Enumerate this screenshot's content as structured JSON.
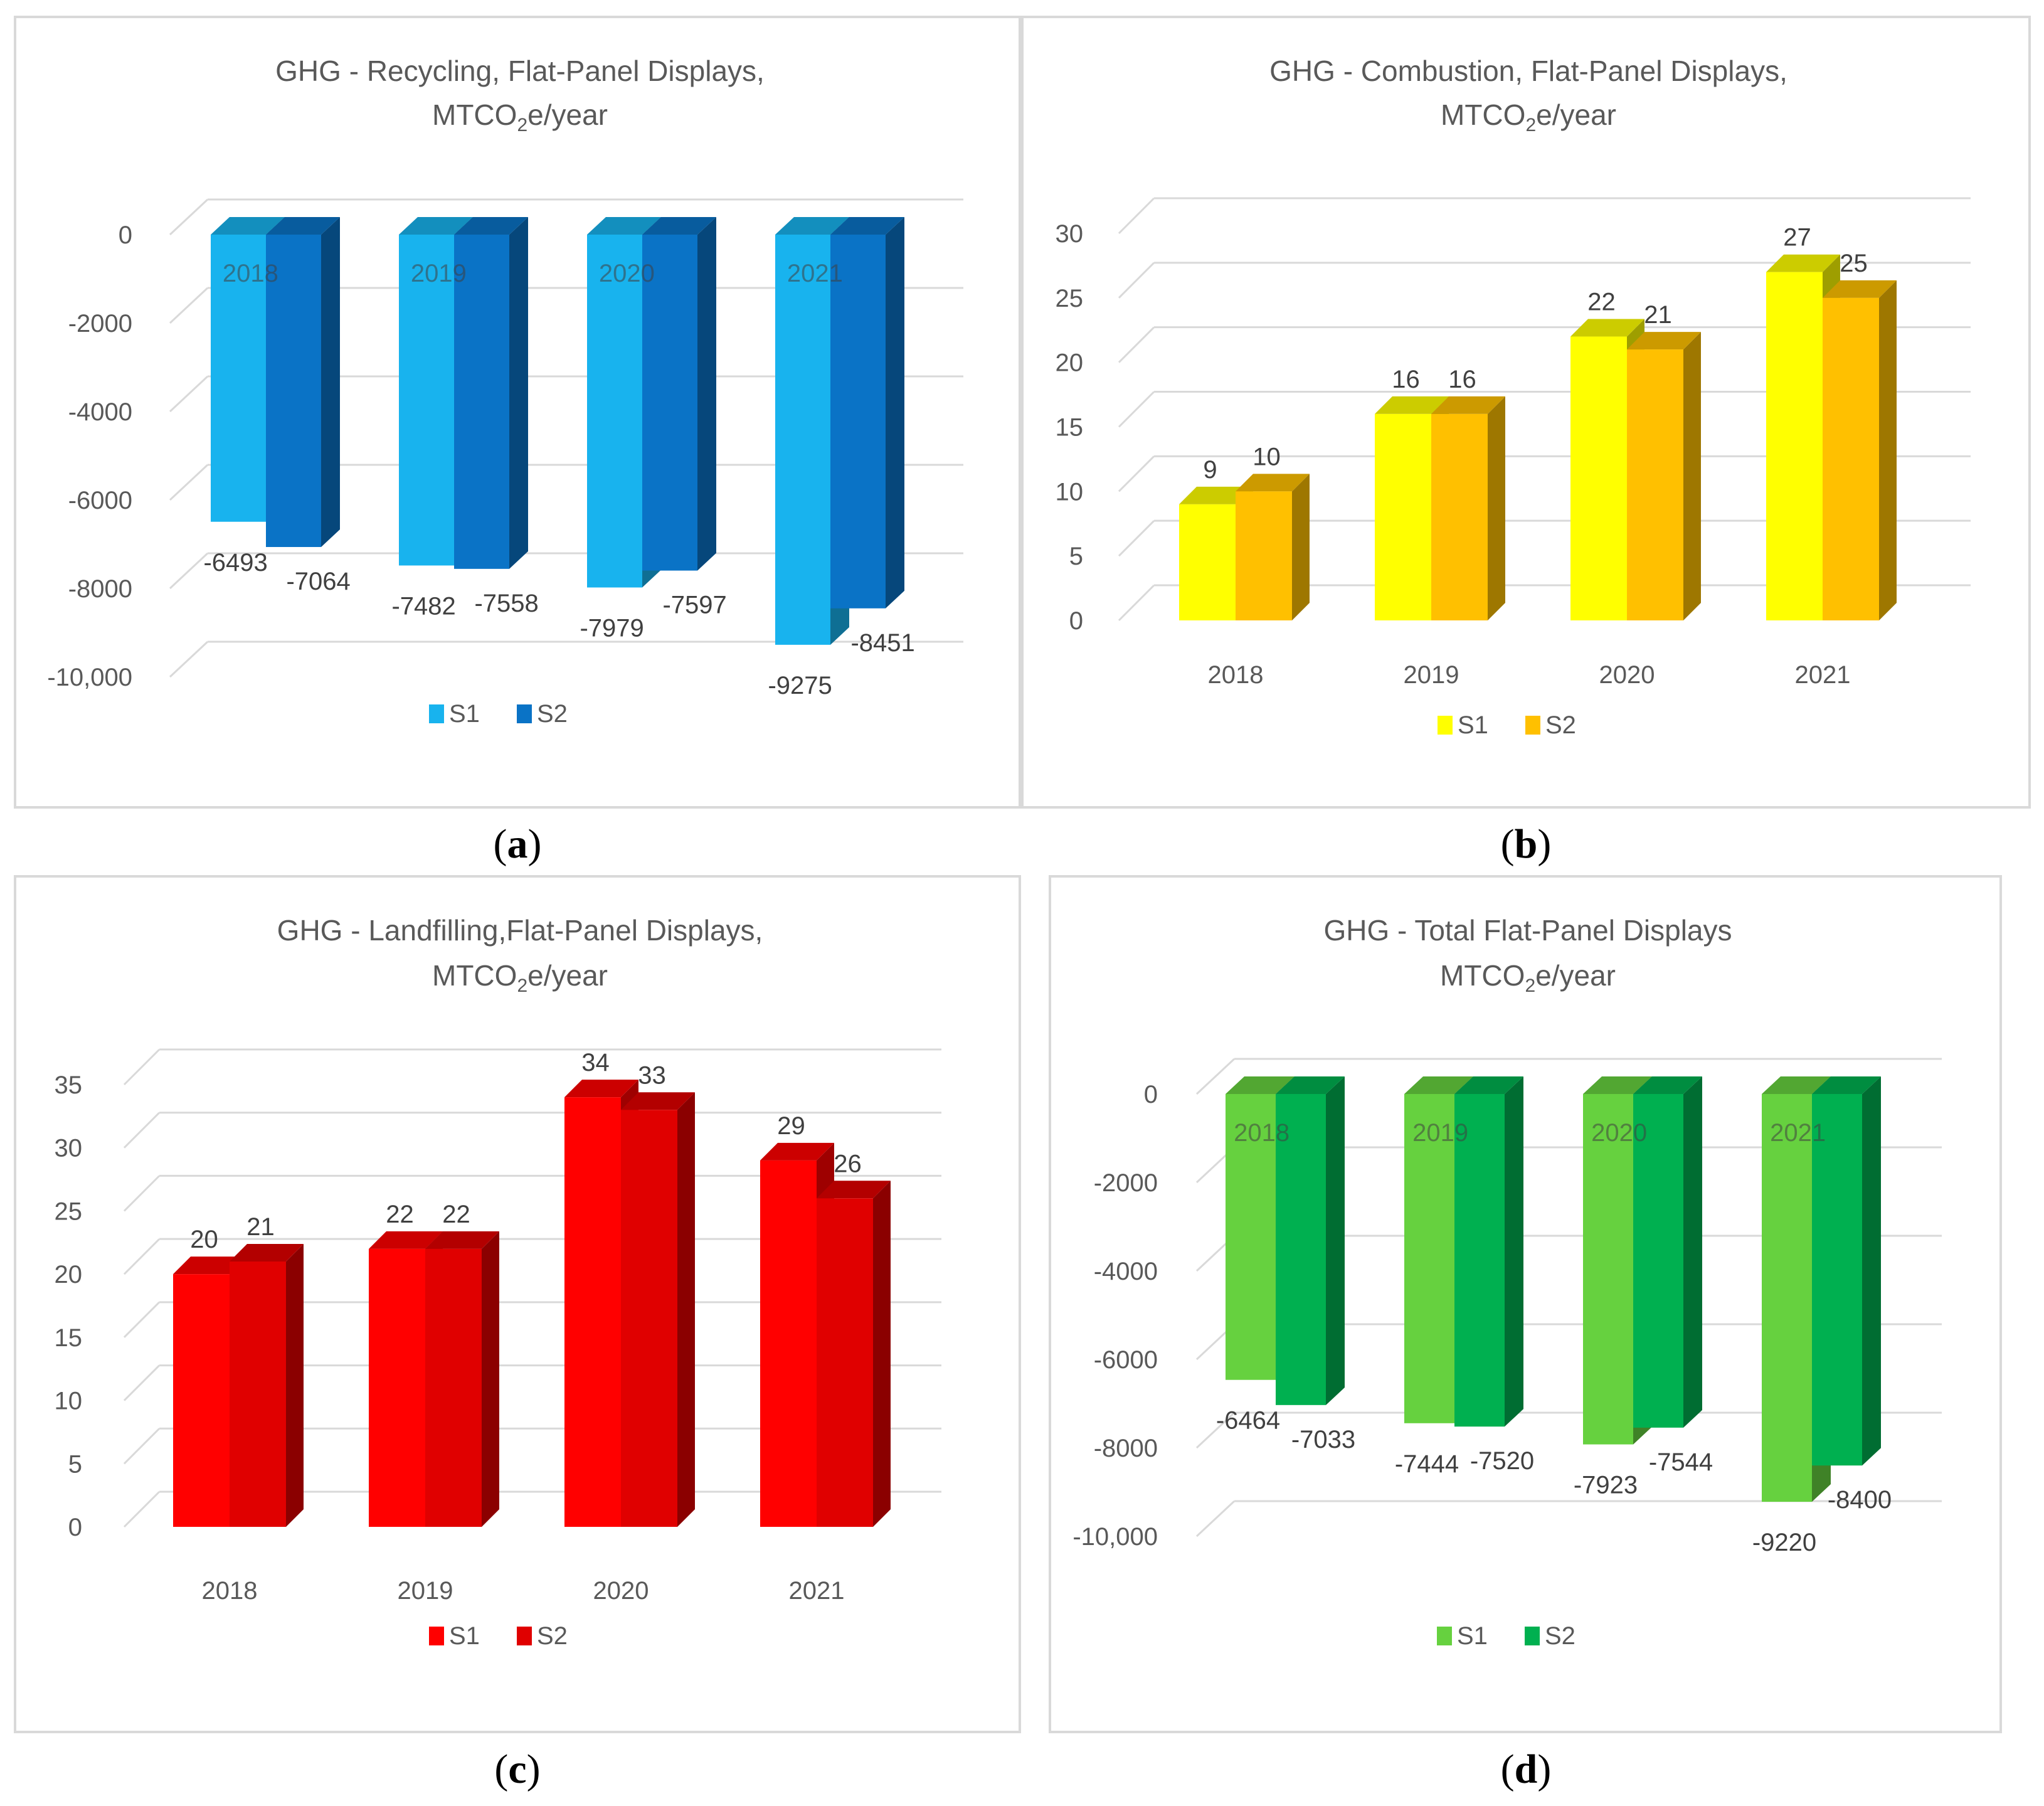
{
  "chart_data": [
    {
      "id": "a",
      "type": "bar",
      "title": "GHG  - Recycling, Flat-Panel Displays,",
      "subtitle": "MTCO2e/year",
      "categories": [
        "2018",
        "2019",
        "2020",
        "2021"
      ],
      "series": [
        {
          "name": "S1",
          "values": [
            -6493,
            -7482,
            -7979,
            -9275
          ],
          "color": "#18b3ee"
        },
        {
          "name": "S2",
          "values": [
            -7064,
            -7558,
            -7597,
            -8451
          ],
          "color": "#0a73c6"
        }
      ],
      "data_labels": [
        [
          "-6493",
          "-7482",
          "-7979",
          "-9275"
        ],
        [
          "-7064",
          "-7558",
          "-7597",
          "-8451"
        ]
      ],
      "yticks": [
        0,
        -2000,
        -4000,
        -6000,
        -8000,
        -10000
      ],
      "ytick_labels": [
        "0",
        "-2000",
        "-4000",
        "-6000",
        "-8000",
        "-10,000"
      ],
      "ylim": [
        -10000,
        0
      ],
      "xlabel": "",
      "ylabel": "",
      "category_labels_inside_bars": true,
      "legend": "bottom",
      "caption": "a"
    },
    {
      "id": "b",
      "type": "bar",
      "title": "GHG  - Combustion, Flat-Panel Displays,",
      "subtitle": "MTCO2e/year",
      "categories": [
        "2018",
        "2019",
        "2020",
        "2021"
      ],
      "series": [
        {
          "name": "S1",
          "values": [
            9,
            16,
            22,
            27
          ],
          "color": "#ffff00"
        },
        {
          "name": "S2",
          "values": [
            10,
            16,
            21,
            25
          ],
          "color": "#ffc000"
        }
      ],
      "data_labels": [
        [
          "9",
          "16",
          "22",
          "27"
        ],
        [
          "10",
          "16",
          "21",
          "25"
        ]
      ],
      "yticks": [
        0,
        5,
        10,
        15,
        20,
        25,
        30
      ],
      "ytick_labels": [
        "0",
        "5",
        "10",
        "15",
        "20",
        "25",
        "30"
      ],
      "ylim": [
        0,
        30
      ],
      "xlabel": "",
      "ylabel": "",
      "category_labels_inside_bars": false,
      "legend": "bottom",
      "caption": "b"
    },
    {
      "id": "c",
      "type": "bar",
      "title": "GHG  - Landfilling,Flat-Panel Displays,",
      "subtitle": "MTCO2e/year",
      "categories": [
        "2018",
        "2019",
        "2020",
        "2021"
      ],
      "series": [
        {
          "name": "S1",
          "values": [
            20,
            22,
            34,
            29
          ],
          "color": "#ff0000"
        },
        {
          "name": "S2",
          "values": [
            21,
            22,
            33,
            26
          ],
          "color": "#e00000"
        }
      ],
      "data_labels": [
        [
          "20",
          "22",
          "34",
          "29"
        ],
        [
          "21",
          "22",
          "33",
          "26"
        ]
      ],
      "yticks": [
        0,
        5,
        10,
        15,
        20,
        25,
        30,
        35
      ],
      "ytick_labels": [
        "0",
        "5",
        "10",
        "15",
        "20",
        "25",
        "30",
        "35"
      ],
      "ylim": [
        0,
        35
      ],
      "xlabel": "",
      "ylabel": "",
      "category_labels_inside_bars": false,
      "legend": "bottom",
      "caption": "c"
    },
    {
      "id": "d",
      "type": "bar",
      "title": "GHG  - Total Flat-Panel Displays",
      "subtitle": "MTCO2e/year",
      "categories": [
        "2018",
        "2019",
        "2020",
        "2021"
      ],
      "series": [
        {
          "name": "S1",
          "values": [
            -6464,
            -7444,
            -7923,
            -9220
          ],
          "color": "#66d13f"
        },
        {
          "name": "S2",
          "values": [
            -7033,
            -7520,
            -7544,
            -8400
          ],
          "color": "#00b050"
        }
      ],
      "data_labels": [
        [
          "-6464",
          "-7444",
          "-7923",
          "-9220"
        ],
        [
          "-7033",
          "-7520",
          "-7544",
          "-8400"
        ]
      ],
      "yticks": [
        0,
        -2000,
        -4000,
        -6000,
        -8000,
        -10000
      ],
      "ytick_labels": [
        "0",
        "-2000",
        "-4000",
        "-6000",
        "-8000",
        "-10,000"
      ],
      "ylim": [
        -10000,
        0
      ],
      "xlabel": "",
      "ylabel": "",
      "category_labels_inside_bars": true,
      "legend": "bottom",
      "caption": "d"
    }
  ]
}
